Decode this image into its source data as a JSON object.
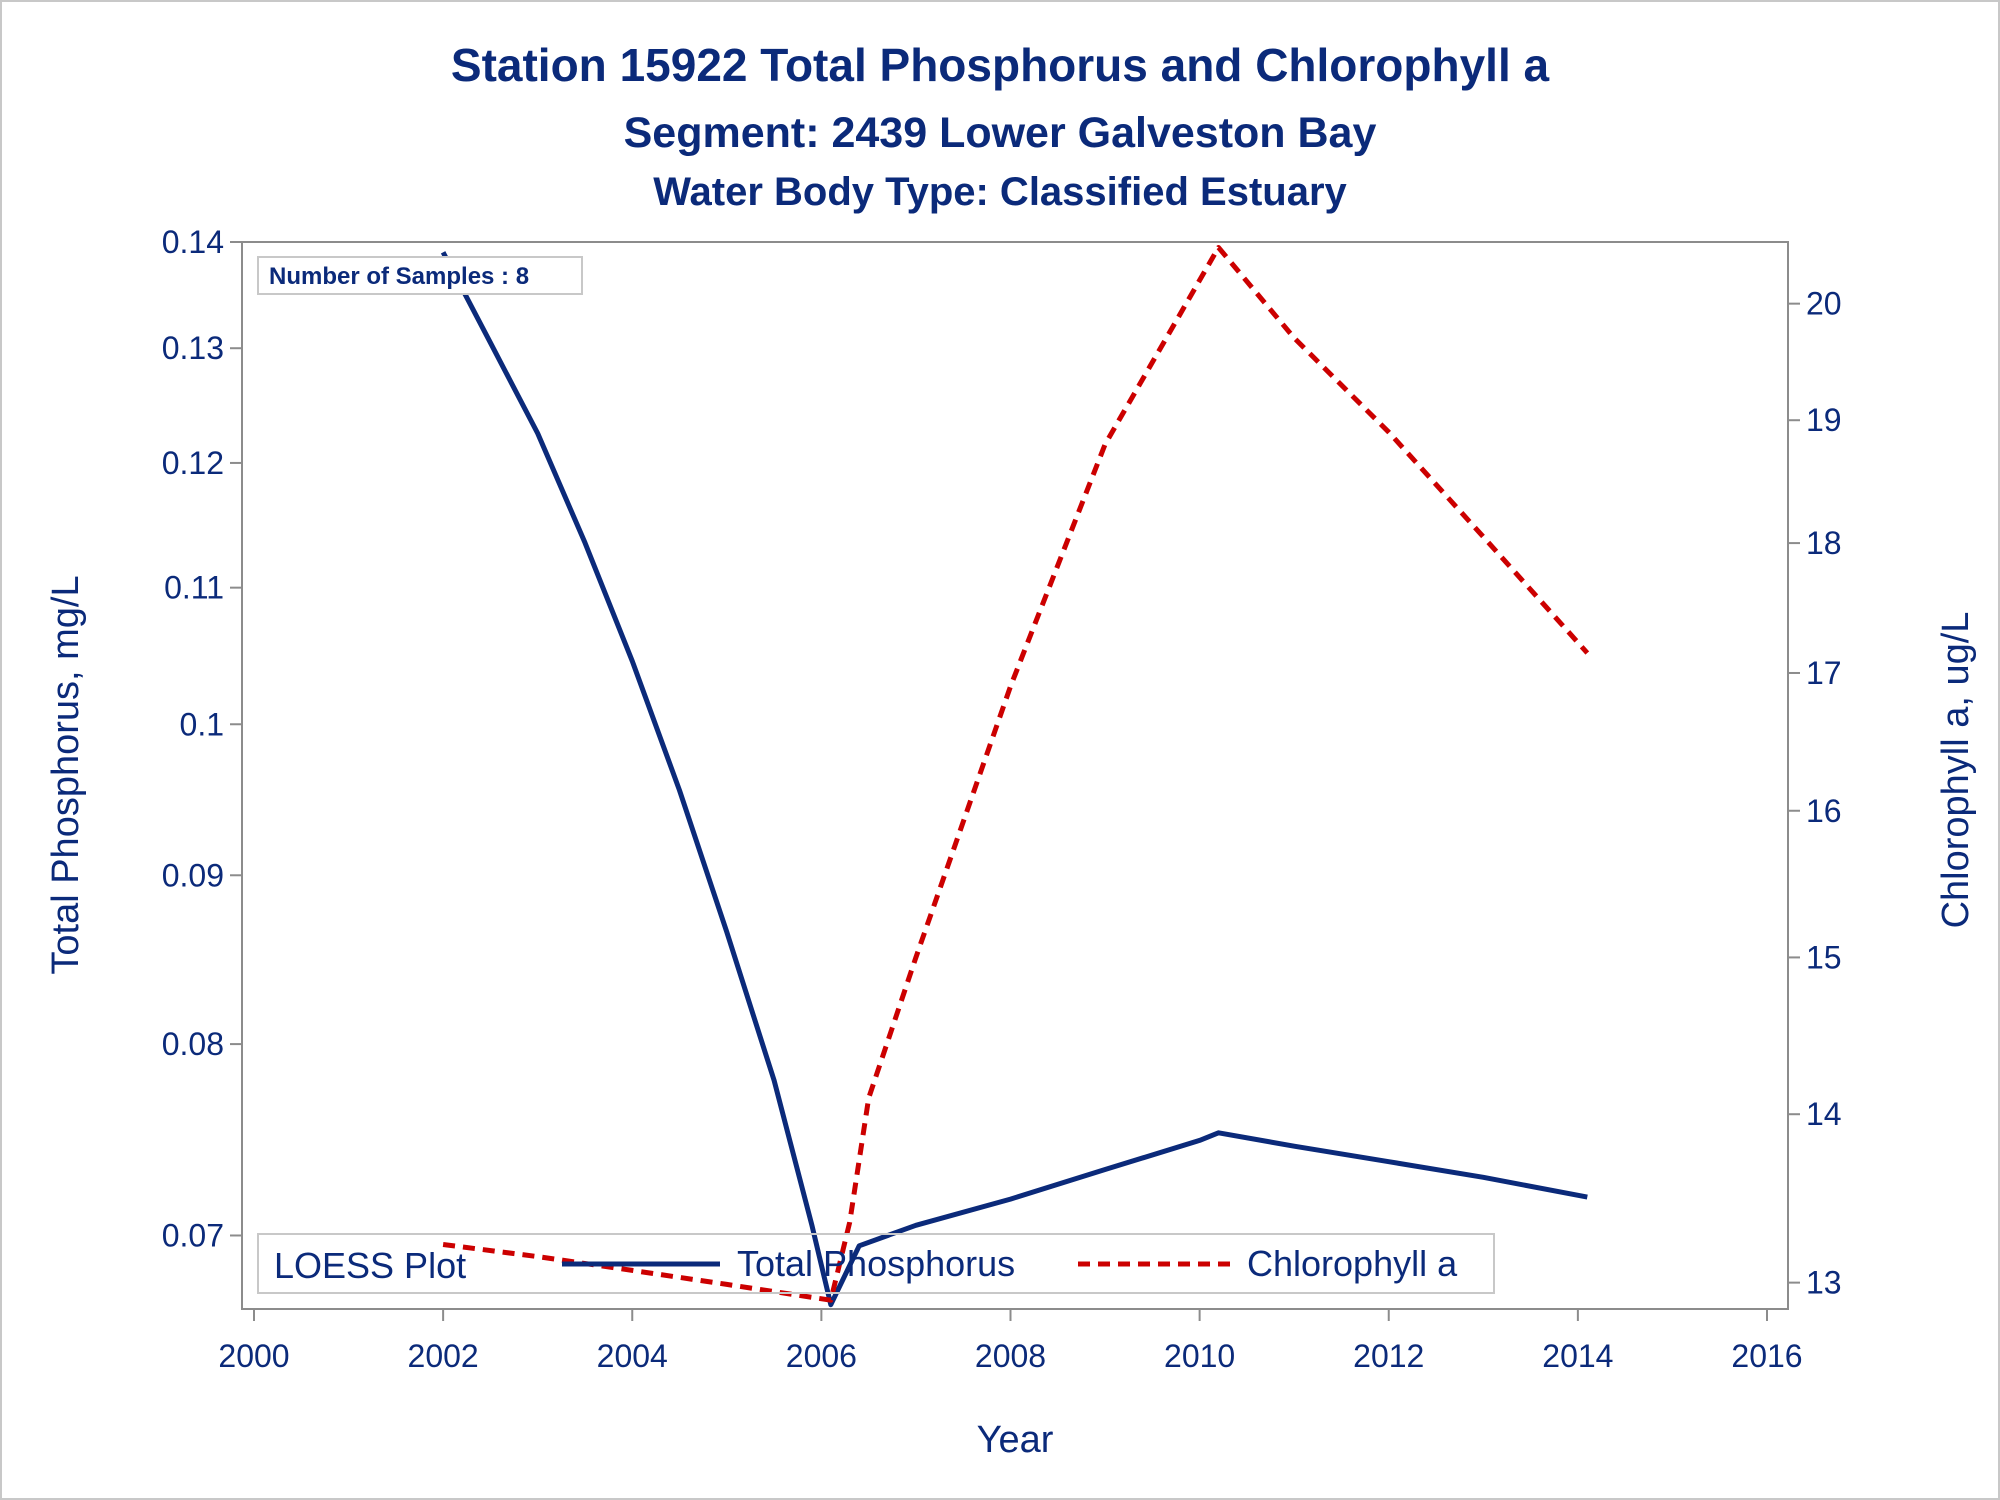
{
  "titles": {
    "line1": "Station 15922   Total Phosphorus and Chlorophyll a",
    "line2": "Segment: 2439  Lower Galveston Bay",
    "line3": "Water Body Type: Classified Estuary"
  },
  "inset_text": "Number of Samples : 8",
  "legend": {
    "title": "LOESS Plot",
    "items": [
      "Total Phosphorus",
      "Chlorophyll a"
    ]
  },
  "colors": {
    "text": "#0b2a7a",
    "phosphorus": "#0b2a7a",
    "chlorophyll": "#cc0000",
    "axis": "#8c8c8c"
  },
  "chart_data": {
    "type": "line",
    "xlabel": "Year",
    "ylabel": "Total Phosphorus, mg/L",
    "y2label": "Chlorophyll a, ug/L",
    "xlim": [
      2000,
      2016
    ],
    "ylim": [
      0.0665,
      0.14
    ],
    "y2lim": [
      12.85,
      20.55
    ],
    "y_scale": "log",
    "y2_scale": "log",
    "x_ticks": [
      "2000",
      "2002",
      "2004",
      "2006",
      "2008",
      "2010",
      "2012",
      "2014",
      "2016"
    ],
    "y_ticks": [
      "0.07",
      "0.08",
      "0.09",
      "0.1",
      "0.11",
      "0.12",
      "0.13",
      "0.14"
    ],
    "y2_ticks": [
      "13",
      "14",
      "15",
      "16",
      "17",
      "18",
      "19",
      "20"
    ],
    "grid": false,
    "legend_position": "bottom",
    "series": [
      {
        "name": "Total Phosphorus",
        "axis": "left",
        "style": "solid",
        "x": [
          2002.0,
          2002.5,
          2003.0,
          2003.5,
          2004.0,
          2004.5,
          2005.0,
          2005.5,
          2005.9,
          2006.1,
          2006.4,
          2007.0,
          2008.0,
          2009.0,
          2010.0,
          2010.2,
          2011.0,
          2012.0,
          2013.0,
          2014.1
        ],
        "values": [
          0.139,
          0.1305,
          0.1225,
          0.1135,
          0.1045,
          0.0955,
          0.0865,
          0.078,
          0.0705,
          0.0667,
          0.0695,
          0.0705,
          0.0718,
          0.0733,
          0.0748,
          0.0752,
          0.0745,
          0.0737,
          0.0729,
          0.0719
        ]
      },
      {
        "name": "Chlorophyll a",
        "axis": "right",
        "style": "dashed",
        "x": [
          2002.0,
          2003.0,
          2004.0,
          2005.0,
          2006.1,
          2006.3,
          2006.5,
          2007.0,
          2008.0,
          2009.0,
          2010.2,
          2011.0,
          2012.0,
          2013.0,
          2014.1
        ],
        "values": [
          13.22,
          13.15,
          13.07,
          12.99,
          12.9,
          13.35,
          14.1,
          15.0,
          16.9,
          18.8,
          20.5,
          19.7,
          18.9,
          18.05,
          17.15
        ]
      }
    ]
  }
}
